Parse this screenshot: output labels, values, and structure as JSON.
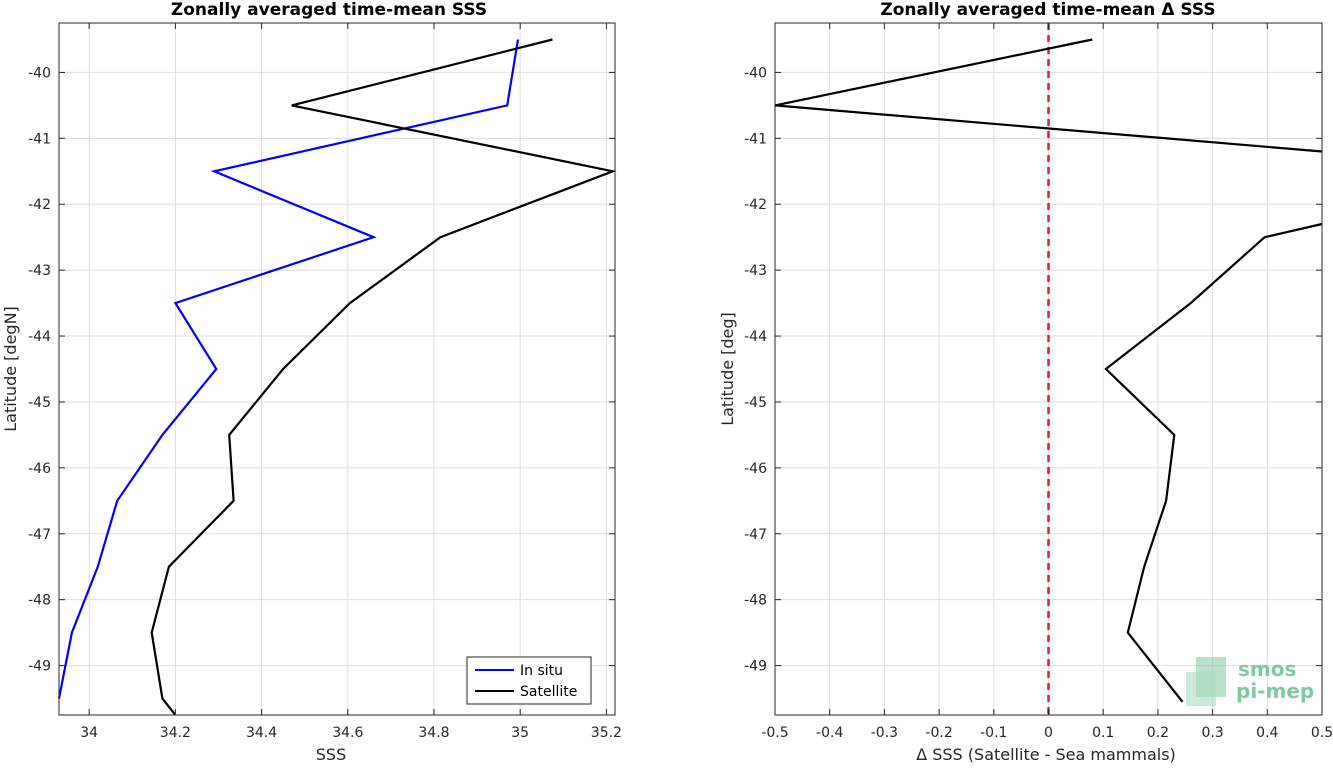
{
  "chart_data": [
    {
      "type": "line",
      "title": "Zonally averaged time-mean SSS",
      "xlabel": "SSS",
      "ylabel": "Latitude [degN]",
      "xlim": [
        33.93,
        35.22
      ],
      "ylim": [
        -49.75,
        -39.25
      ],
      "xticks": [
        34,
        34.2,
        34.4,
        34.6,
        34.8,
        35,
        35.2
      ],
      "xtick_labels": [
        "34",
        "34.2",
        "34.4",
        "34.6",
        "34.8",
        "35",
        "35.2"
      ],
      "yticks": [
        -40,
        -41,
        -42,
        -43,
        -44,
        -45,
        -46,
        -47,
        -48,
        -49
      ],
      "ytick_labels": [
        "-40",
        "-41",
        "-42",
        "-43",
        "-44",
        "-45",
        "-46",
        "-47",
        "-48",
        "-49"
      ],
      "grid": true,
      "legend_position": "bottom-right",
      "series": [
        {
          "name": "In situ",
          "color": "#0000ff",
          "x": [
            34.995,
            34.97,
            34.29,
            34.66,
            34.2,
            34.295,
            34.17,
            34.065,
            34.02,
            33.96,
            33.93
          ],
          "y": [
            -39.5,
            -40.5,
            -41.5,
            -42.5,
            -43.5,
            -44.5,
            -45.5,
            -46.5,
            -47.5,
            -48.5,
            -49.5
          ]
        },
        {
          "name": "Satellite",
          "color": "#000000",
          "x": [
            35.075,
            34.47,
            35.215,
            34.815,
            34.605,
            34.45,
            34.325,
            34.335,
            34.185,
            34.145,
            34.17,
            34.2
          ],
          "y": [
            -39.5,
            -40.5,
            -41.5,
            -42.5,
            -43.5,
            -44.5,
            -45.5,
            -46.5,
            -47.5,
            -48.5,
            -49.5,
            -49.75
          ]
        }
      ]
    },
    {
      "type": "line",
      "title": "Zonally averaged time-mean Δ SSS",
      "xlabel": "Δ SSS (Satellite - Sea mammals)",
      "ylabel": "Latitude [deg]",
      "xlim": [
        -0.5,
        0.5
      ],
      "ylim": [
        -49.75,
        -39.25
      ],
      "xticks": [
        -0.5,
        -0.4,
        -0.3,
        -0.2,
        -0.1,
        0,
        0.1,
        0.2,
        0.3,
        0.4,
        0.5
      ],
      "xtick_labels": [
        "-0.5",
        "-0.4",
        "-0.3",
        "-0.2",
        "-0.1",
        "0",
        "0.1",
        "0.2",
        "0.3",
        "0.4",
        "0.5"
      ],
      "yticks": [
        -40,
        -41,
        -42,
        -43,
        -44,
        -45,
        -46,
        -47,
        -48,
        -49
      ],
      "ytick_labels": [
        "-40",
        "-41",
        "-42",
        "-43",
        "-44",
        "-45",
        "-46",
        "-47",
        "-48",
        "-49"
      ],
      "grid": true,
      "reference_line": {
        "x": 0,
        "color": "#e0201b",
        "style": "dashed"
      },
      "series": [
        {
          "color": "#000000",
          "x": [
            0.08,
            -0.5,
            0.5
          ],
          "y": [
            -39.5,
            -40.5,
            -41.2
          ]
        },
        {
          "color": "#000000",
          "x": [
            0.5,
            0.395,
            0.26,
            0.105,
            0.23,
            0.215,
            0.175,
            0.145,
            0.245
          ],
          "y": [
            -42.3,
            -42.5,
            -43.5,
            -44.5,
            -45.5,
            -46.5,
            -47.5,
            -48.5,
            -49.55
          ]
        }
      ]
    }
  ],
  "logo": {
    "line1": "smos",
    "line2": "pi-mep",
    "color": "#7fc9a0"
  }
}
